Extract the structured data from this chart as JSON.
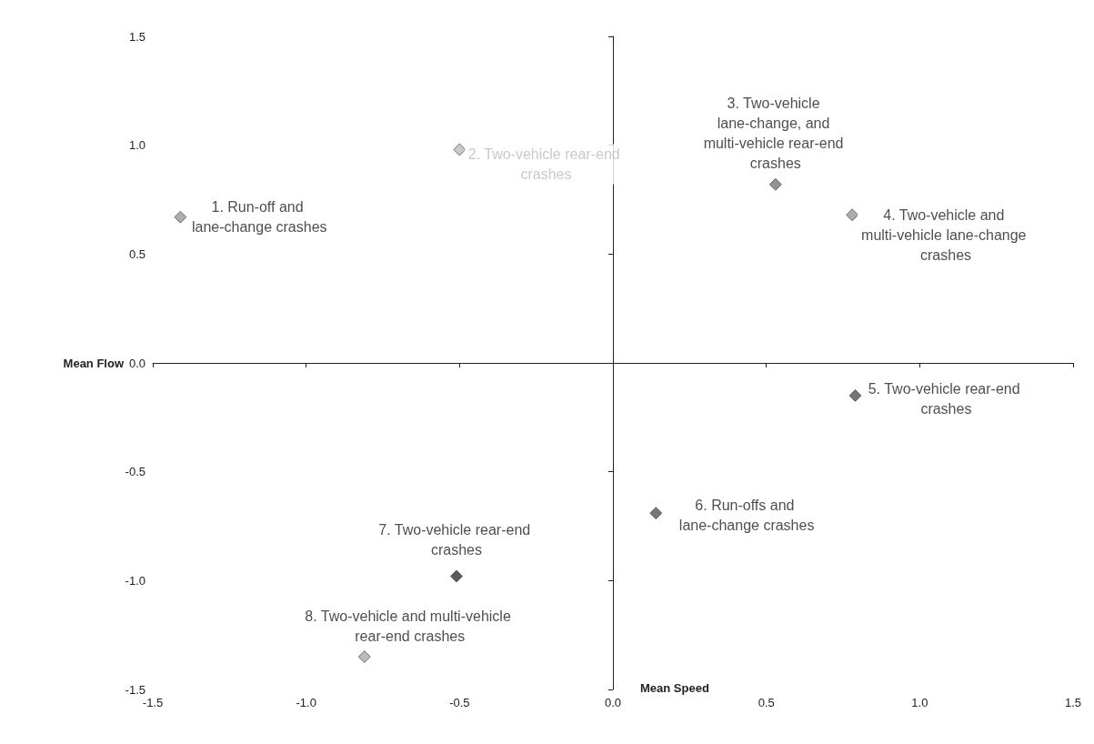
{
  "chart_data": {
    "type": "scatter",
    "xlabel": "Mean Flow",
    "ylabel": "Mean Speed",
    "marker": "diamond",
    "legend": false,
    "xlim": [
      -1.5,
      1.5
    ],
    "xticks": [
      -1.5,
      {
        "value": -1,
        "label": "-1.0"
      },
      -0.5,
      {
        "value": 0,
        "label": "0.0"
      },
      0.5,
      {
        "value": 1,
        "label": "1.0"
      },
      1.5
    ],
    "ylim": [
      -1.5,
      1.5
    ],
    "yticks": [
      -1.5,
      {
        "value": -1,
        "label": "-1.0"
      },
      -0.5,
      {
        "value": 0,
        "label": "0.0"
      },
      0.5,
      {
        "value": 1,
        "label": "1.0"
      },
      1.5
    ],
    "series": [
      {
        "name": "1. Run-off and lane-change crashes",
        "color": "#999999",
        "x": [
          -1.41
        ],
        "values": [
          0.67
        ]
      },
      {
        "name": "2. Two-vehicle rear-end crashes",
        "color": "#bbbbbb",
        "x": [
          -0.5
        ],
        "values": [
          0.98
        ]
      },
      {
        "name": "3. Two-vehicle lane-change, and multi-vehicle rear-end crashes",
        "color": "#777777",
        "x": [
          0.53
        ],
        "values": [
          0.82
        ]
      },
      {
        "name": "4. Two-vehicle and multi-vehicle lane-change crashes",
        "color": "#999999",
        "x": [
          0.78
        ],
        "values": [
          0.68
        ]
      },
      {
        "name": "5. Two-vehicle rear-end crashes",
        "color": "#555555",
        "x": [
          0.79
        ],
        "values": [
          -0.15
        ]
      },
      {
        "name": "6. Run-offs and lane-change crashes",
        "color": "#555555",
        "x": [
          0.14
        ],
        "values": [
          -0.69
        ]
      },
      {
        "name": "7. Two-vehicle rear-end crashes",
        "color": "#333333",
        "x": [
          -0.51
        ],
        "values": [
          -0.98
        ]
      },
      {
        "name": "8. Two-vehicle and multi-vehicle rear-end crashes",
        "color": "#aaaaaa",
        "x": [
          -0.81
        ],
        "values": [
          -1.35
        ]
      }
    ]
  }
}
